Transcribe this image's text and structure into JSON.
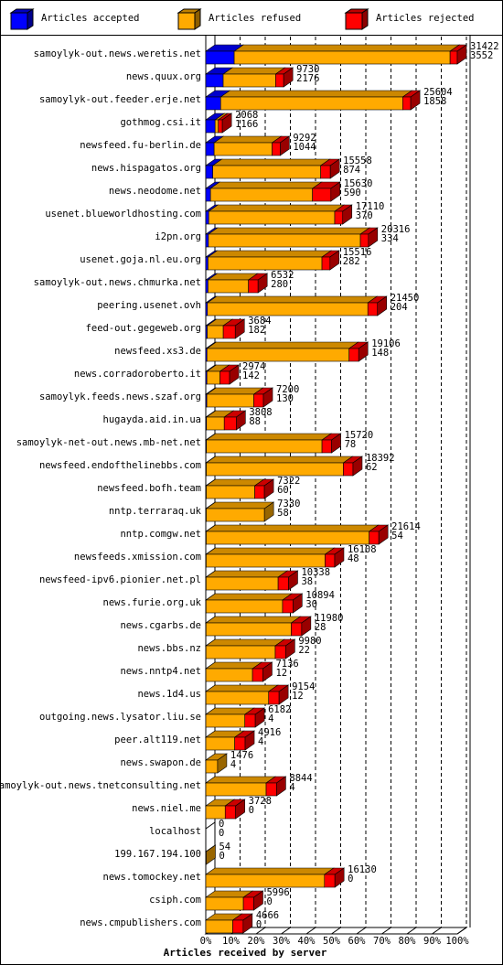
{
  "chart_data": {
    "type": "bar3d",
    "orientation": "horizontal",
    "stacked": true,
    "xlabel": "Articles received by server",
    "legend": "top",
    "grid": true,
    "categories": [
      "samoylyk-out.news.weretis.net",
      "news.quux.org",
      "samoylyk-out.feeder.erje.net",
      "gothmog.csi.it",
      "newsfeed.fu-berlin.de",
      "news.hispagatos.org",
      "news.neodome.net",
      "usenet.blueworldhosting.com",
      "i2pn.org",
      "usenet.goja.nl.eu.org",
      "samoylyk-out.news.chmurka.net",
      "peering.usenet.ovh",
      "feed-out.gegeweb.org",
      "newsfeed.xs3.de",
      "news.corradoroberto.it",
      "samoylyk.feeds.news.szaf.org",
      "hugayda.aid.in.ua",
      "samoylyk-net-out.news.mb-net.net",
      "newsfeed.endofthelinebbs.com",
      "newsfeed.bofh.team",
      "nntp.terraraq.uk",
      "nntp.comgw.net",
      "newsfeeds.xmission.com",
      "newsfeed-ipv6.pionier.net.pl",
      "news.furie.org.uk",
      "news.cgarbs.de",
      "news.bbs.nz",
      "news.nntp4.net",
      "news.1d4.us",
      "outgoing.news.lysator.liu.se",
      "peer.alt119.net",
      "news.swapon.de",
      "samoylyk-out.news.tnetconsulting.net",
      "news.niel.me",
      "localhost",
      "199.167.194.100",
      "news.tomockey.net",
      "csiph.com",
      "news.cmpublishers.com"
    ],
    "totals": [
      31422,
      9730,
      25604,
      2068,
      9292,
      15558,
      15630,
      17110,
      20316,
      15516,
      6532,
      21450,
      3684,
      19106,
      2974,
      7200,
      3808,
      15720,
      18392,
      7322,
      7330,
      21614,
      16108,
      10338,
      10894,
      11980,
      9980,
      7136,
      9154,
      6182,
      4916,
      1476,
      8844,
      3728,
      0,
      54,
      16130,
      5996,
      4666
    ],
    "series": [
      {
        "name": "Articles accepted",
        "color": "#0000ff",
        "values": [
          3552,
          2176,
          1858,
          1166,
          1044,
          874,
          590,
          370,
          334,
          282,
          280,
          204,
          182,
          148,
          142,
          130,
          88,
          78,
          62,
          60,
          58,
          54,
          48,
          38,
          30,
          28,
          22,
          12,
          12,
          4,
          4,
          4,
          4,
          0,
          0,
          0,
          0,
          0,
          0
        ]
      },
      {
        "name": "Articles refused",
        "color": "#ffaa00",
        "values": [
          26970,
          6554,
          22746,
          402,
          7248,
          13484,
          12740,
          15740,
          18982,
          14234,
          5052,
          20046,
          2002,
          17758,
          1632,
          5870,
          2220,
          14442,
          17130,
          6062,
          7272,
          20360,
          14860,
          9000,
          9564,
          10652,
          8658,
          5824,
          7842,
          4878,
          3612,
          1472,
          7540,
          2428,
          0,
          54,
          14830,
          4696,
          3366
        ]
      },
      {
        "name": "Articles rejected",
        "color": "#ff0000",
        "values": [
          900,
          1000,
          1000,
          500,
          1000,
          1200,
          2300,
          1000,
          1000,
          1000,
          1200,
          1200,
          1500,
          1200,
          1200,
          1200,
          1500,
          1200,
          1200,
          1200,
          0,
          1200,
          1200,
          1300,
          1300,
          1300,
          1300,
          1300,
          1300,
          1300,
          1300,
          0,
          1300,
          1300,
          0,
          0,
          1300,
          1300,
          1300
        ]
      }
    ],
    "xlim": [
      0,
      31422
    ],
    "xticks": [
      {
        "value": 0,
        "label": "0%"
      },
      {
        "value": 3142.2,
        "label": "10%"
      },
      {
        "value": 6284.4,
        "label": "20%"
      },
      {
        "value": 9426.6,
        "label": "30%"
      },
      {
        "value": 12568.8,
        "label": "40%"
      },
      {
        "value": 15711,
        "label": "50%"
      },
      {
        "value": 18853.2,
        "label": "60%"
      },
      {
        "value": 21995.4,
        "label": "70%"
      },
      {
        "value": 25137.6,
        "label": "80%"
      },
      {
        "value": 28279.8,
        "label": "90%"
      },
      {
        "value": 31422,
        "label": "100%"
      }
    ]
  }
}
